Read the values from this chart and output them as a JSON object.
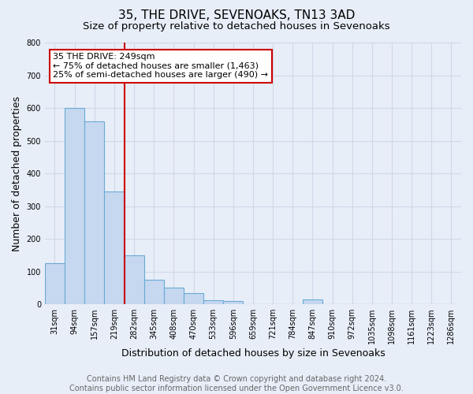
{
  "title": "35, THE DRIVE, SEVENOAKS, TN13 3AD",
  "subtitle": "Size of property relative to detached houses in Sevenoaks",
  "xlabel": "Distribution of detached houses by size in Sevenoaks",
  "ylabel": "Number of detached properties",
  "bar_labels": [
    "31sqm",
    "94sqm",
    "157sqm",
    "219sqm",
    "282sqm",
    "345sqm",
    "408sqm",
    "470sqm",
    "533sqm",
    "596sqm",
    "659sqm",
    "721sqm",
    "784sqm",
    "847sqm",
    "910sqm",
    "972sqm",
    "1035sqm",
    "1098sqm",
    "1161sqm",
    "1223sqm",
    "1286sqm"
  ],
  "bar_values": [
    125,
    600,
    560,
    345,
    150,
    75,
    50,
    35,
    13,
    10,
    0,
    0,
    0,
    15,
    0,
    0,
    0,
    0,
    0,
    0,
    0
  ],
  "bar_color": "#c5d8f0",
  "bar_edge_color": "#6aaad4",
  "ylim": [
    0,
    800
  ],
  "vline_color": "#cc0000",
  "annotation_text": "35 THE DRIVE: 249sqm\n← 75% of detached houses are smaller (1,463)\n25% of semi-detached houses are larger (490) →",
  "annotation_box_color": "#ffffff",
  "annotation_box_edge": "#cc0000",
  "footer_line1": "Contains HM Land Registry data © Crown copyright and database right 2024.",
  "footer_line2": "Contains public sector information licensed under the Open Government Licence v3.0.",
  "background_color": "#e8eef8",
  "grid_color": "#d0d8e8",
  "title_fontsize": 11,
  "subtitle_fontsize": 9.5,
  "axis_label_fontsize": 9,
  "tick_fontsize": 7,
  "footer_fontsize": 7,
  "annot_fontsize": 8
}
